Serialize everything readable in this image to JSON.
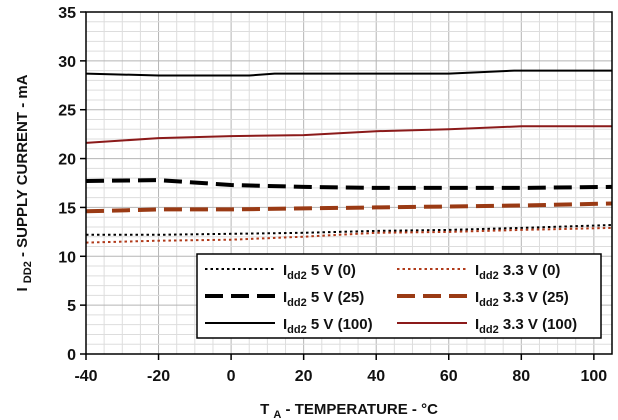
{
  "chart_data": {
    "type": "line",
    "title": "",
    "xlabel": {
      "main": "T",
      "sub": "A",
      "rest": " - TEMPERATURE - °C"
    },
    "ylabel": {
      "main": "I",
      "sub": "DD2",
      "rest": " - SUPPLY CURRENT - mA"
    },
    "xlim": [
      -40,
      105
    ],
    "ylim": [
      0,
      35
    ],
    "xticks": [
      -40,
      -20,
      0,
      20,
      40,
      60,
      80,
      100
    ],
    "yticks": [
      0,
      5,
      10,
      15,
      20,
      25,
      30,
      35
    ],
    "grid": true,
    "legend_position": "bottom-right",
    "series": [
      {
        "name": "5 V (0)",
        "color": "#000000",
        "style": "dotted",
        "x": [
          -40,
          -20,
          0,
          20,
          40,
          60,
          80,
          105
        ],
        "y": [
          12.2,
          12.2,
          12.3,
          12.4,
          12.6,
          12.7,
          12.9,
          13.2
        ]
      },
      {
        "name": "3.3 V (0)",
        "color": "#b03a1a",
        "style": "dotted",
        "x": [
          -40,
          -20,
          0,
          20,
          40,
          60,
          80,
          105
        ],
        "y": [
          11.4,
          11.6,
          11.7,
          12.0,
          12.4,
          12.5,
          12.7,
          12.9
        ]
      },
      {
        "name": "5 V (25)",
        "color": "#000000",
        "style": "longdash",
        "x": [
          -40,
          -20,
          0,
          20,
          40,
          60,
          80,
          105
        ],
        "y": [
          17.7,
          17.8,
          17.3,
          17.1,
          17.0,
          17.0,
          17.0,
          17.1
        ]
      },
      {
        "name": "3.3 V (25)",
        "color": "#9a3a14",
        "style": "longdash",
        "x": [
          -40,
          -20,
          0,
          20,
          40,
          60,
          80,
          105
        ],
        "y": [
          14.6,
          14.8,
          14.8,
          14.9,
          15.0,
          15.1,
          15.2,
          15.4
        ]
      },
      {
        "name": "5 V (100)",
        "color": "#000000",
        "style": "solid",
        "x": [
          -40,
          -20,
          0,
          5,
          12,
          40,
          60,
          78,
          105
        ],
        "y": [
          28.7,
          28.5,
          28.5,
          28.5,
          28.7,
          28.7,
          28.7,
          29.0,
          29.0
        ]
      },
      {
        "name": "3.3 V (100)",
        "color": "#8b1a1a",
        "style": "solid",
        "x": [
          -40,
          -20,
          0,
          20,
          40,
          60,
          80,
          105
        ],
        "y": [
          21.6,
          22.1,
          22.3,
          22.4,
          22.8,
          23.0,
          23.3,
          23.3
        ]
      }
    ],
    "legend_label_prefix": {
      "main": "I",
      "sub": "dd2"
    }
  }
}
